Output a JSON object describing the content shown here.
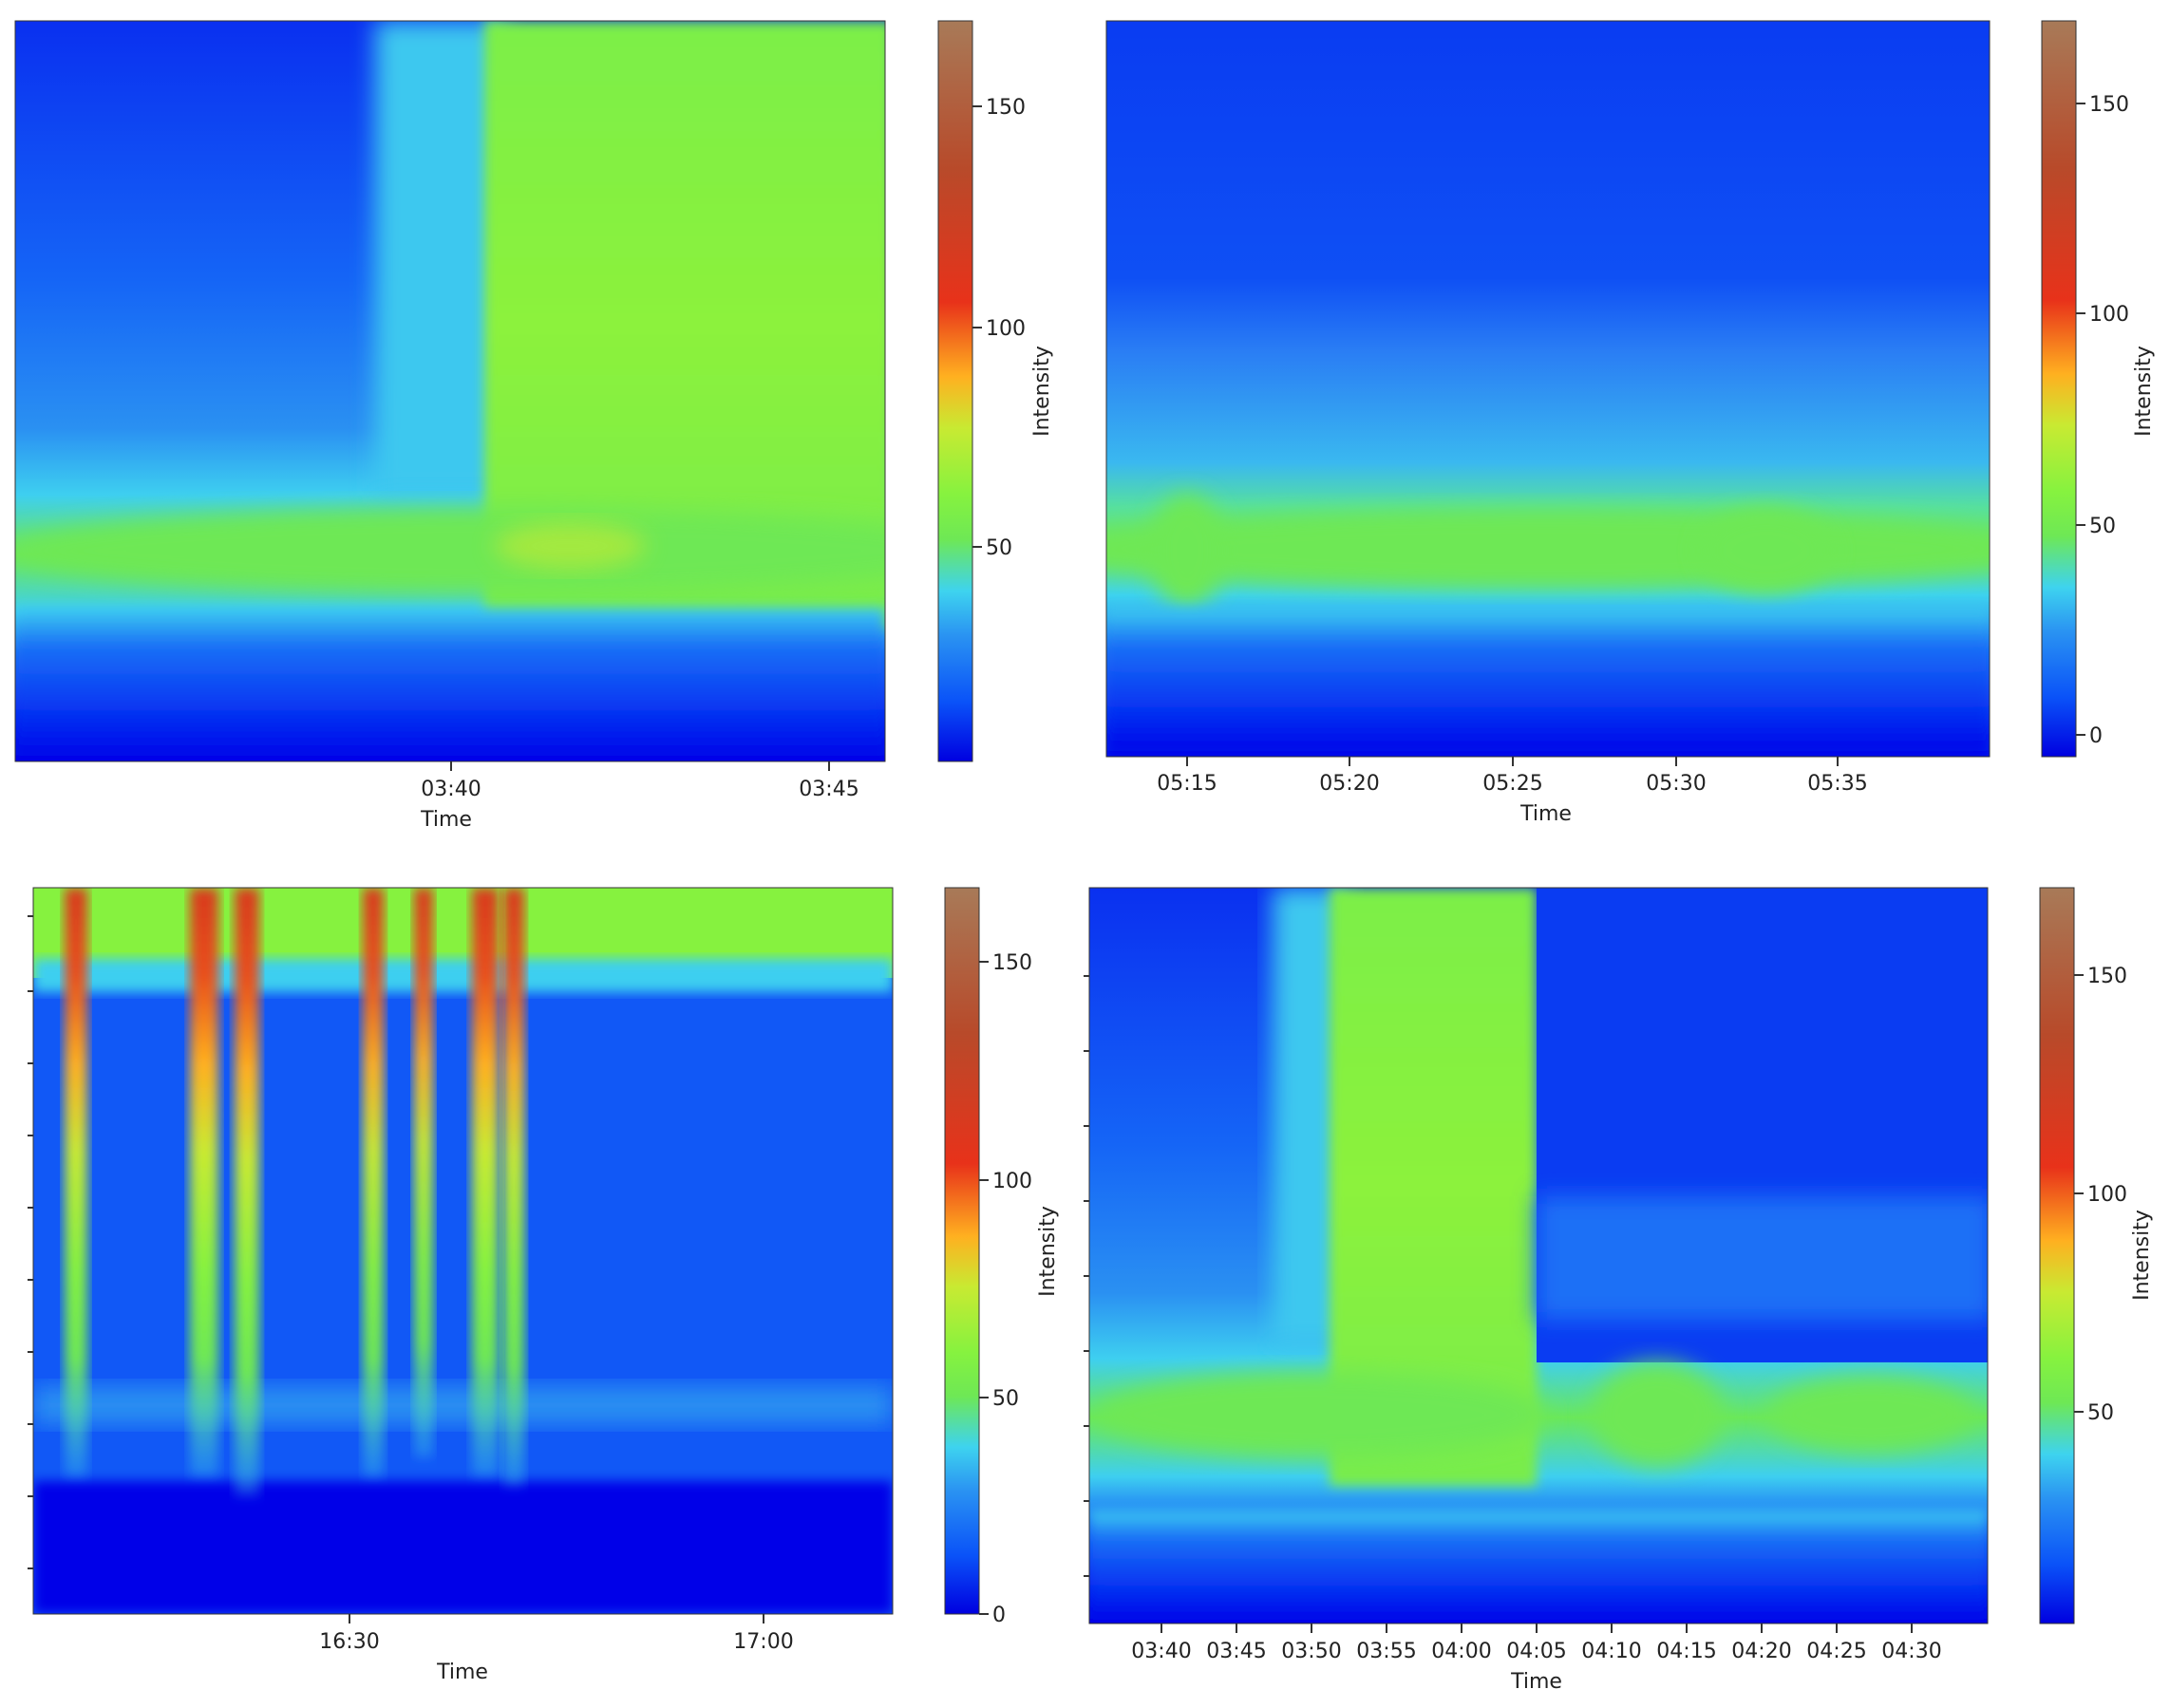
{
  "colors": {
    "stops": [
      "#0000e0",
      "#0a52f8",
      "#2a93f2",
      "#3ed3ef",
      "#6ee855",
      "#86f23f",
      "#c8ea32",
      "#ffb020",
      "#e8321a",
      "#b84a2a",
      "#a87a58"
    ],
    "blue_deep": "#0000e8",
    "blue": "#0a52f8",
    "cyan": "#3ed3ef",
    "green": "#86f23f",
    "red": "#d83a1a"
  },
  "chart_data": [
    {
      "type": "heatmap",
      "panel": "top-left",
      "title": "",
      "xlabel": "Time",
      "ylabel": "",
      "x_ticks": [
        "03:40",
        "03:45"
      ],
      "colorbar": {
        "label": "Intensity",
        "ticks": [
          "50",
          "100",
          "150"
        ],
        "range": [
          0,
          170
        ]
      },
      "description_values": {
        "band_center_intensity": 55,
        "background_intensity": 15,
        "high_region_intensity": 60
      }
    },
    {
      "type": "heatmap",
      "panel": "top-right",
      "title": "",
      "xlabel": "Time",
      "ylabel": "",
      "x_ticks": [
        "05:15",
        "05:20",
        "05:25",
        "05:30",
        "05:35"
      ],
      "colorbar": {
        "label": "Intensity",
        "ticks": [
          "0",
          "50",
          "100",
          "150"
        ],
        "range": [
          -5,
          170
        ]
      },
      "description_values": {
        "band_center_intensity": 50,
        "background_intensity": 15
      }
    },
    {
      "type": "heatmap",
      "panel": "bottom-left",
      "title": "",
      "xlabel": "Time",
      "ylabel": "",
      "x_ticks": [
        "16:30",
        "17:00"
      ],
      "colorbar": {
        "label": "Intensity",
        "ticks": [
          "0",
          "50",
          "100",
          "150"
        ],
        "range": [
          0,
          168
        ]
      },
      "description_values": {
        "spike_peak_intensity": 140,
        "top_band_intensity": 60,
        "background_intensity": 15
      }
    },
    {
      "type": "heatmap",
      "panel": "bottom-right",
      "title": "",
      "xlabel": "Time",
      "ylabel": "",
      "x_ticks": [
        "03:40",
        "03:45",
        "03:50",
        "03:55",
        "04:00",
        "04:05",
        "04:10",
        "04:15",
        "04:20",
        "04:25",
        "04:30"
      ],
      "colorbar": {
        "label": "Intensity",
        "ticks": [
          "50",
          "100",
          "150"
        ],
        "range": [
          0,
          170
        ]
      },
      "description_values": {
        "band_center_intensity": 55,
        "background_intensity": 15,
        "high_region_intensity": 60
      }
    }
  ]
}
